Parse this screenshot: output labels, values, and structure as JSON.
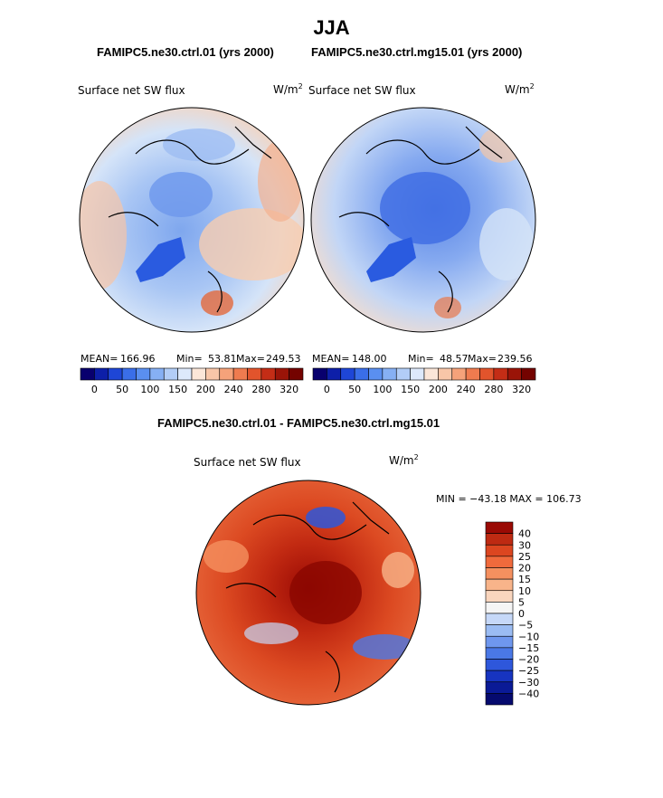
{
  "main_title": "JJA",
  "left_panel": {
    "case": "FAMIPC5.ne30.ctrl.01 (yrs 2000)",
    "field": "Surface net SW flux",
    "units_base": "W/m",
    "units_exp": "2",
    "stats": {
      "mean_label": "MEAN=",
      "mean": "166.96",
      "min_label": "Min=",
      "min": "53.81",
      "max_label": "Max=",
      "max": "249.53"
    }
  },
  "right_panel": {
    "case": "FAMIPC5.ne30.ctrl.mg15.01 (yrs 2000)",
    "field": "Surface net SW flux",
    "units_base": "W/m",
    "units_exp": "2",
    "stats": {
      "mean_label": "MEAN=",
      "mean": "148.00",
      "min_label": "Min=",
      "min": "48.57",
      "max_label": "Max=",
      "max": "239.56"
    }
  },
  "abs_colorbar": {
    "colors": [
      "#08006e",
      "#0d1fa8",
      "#1e46d6",
      "#3a6ee8",
      "#5a8ff0",
      "#86b0f4",
      "#b2cdf7",
      "#dde9fb",
      "#fbe6d8",
      "#f8c6a8",
      "#f5a27a",
      "#ef7b4f",
      "#e2542c",
      "#c42d16",
      "#9a1408",
      "#740300"
    ],
    "tick_labels": [
      "0",
      "50",
      "100",
      "150",
      "200",
      "240",
      "280",
      "320"
    ]
  },
  "diff_panel": {
    "title": "FAMIPC5.ne30.ctrl.01 - FAMIPC5.ne30.ctrl.mg15.01",
    "field": "Surface net SW flux",
    "units_base": "W/m",
    "units_exp": "2",
    "minmax_text": "MIN = −43.18 MAX = 106.73"
  },
  "diff_colorbar": {
    "colors": [
      "#9a0a04",
      "#be2a12",
      "#dc4620",
      "#f06a3c",
      "#f5905f",
      "#f8b48a",
      "#fad6be",
      "#f5f5f5",
      "#c6d8f8",
      "#9bbcf3",
      "#6f97ee",
      "#4a78e6",
      "#2e57db",
      "#1734c0",
      "#0a1a96",
      "#050a6e"
    ],
    "tick_labels": [
      "40",
      "30",
      "25",
      "20",
      "15",
      "10",
      "5",
      "0",
      "−5",
      "−10",
      "−15",
      "−20",
      "−25",
      "−30",
      "−40"
    ]
  }
}
